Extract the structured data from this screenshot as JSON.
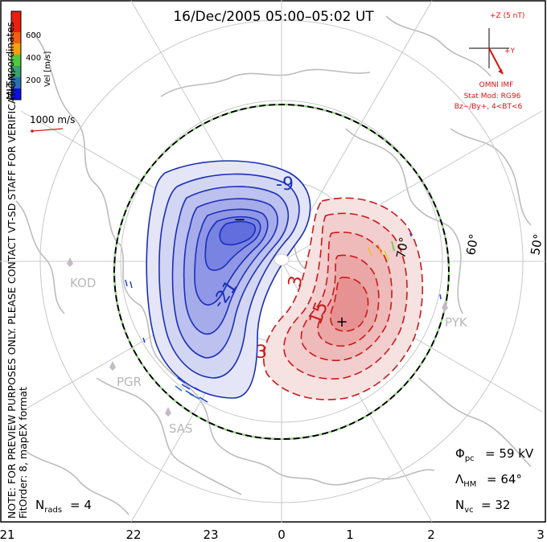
{
  "title": "16/Dec/2005 05:00–05:02 UT",
  "coordinate_system": "MLT coordinates",
  "verification_note": "NOTE: FOR PREVIEW PURPOSES ONLY. PLEASE CONTACT VT-SD STAFF FOR VERIFICATION.",
  "fit_info": "FitOrder: 8, mapEX format",
  "colorbar": {
    "label": "Vel [m/s]",
    "ticks": [
      "600",
      "400",
      "200"
    ],
    "colors": [
      "#1010e0",
      "#2a6fb0",
      "#3aa070",
      "#50c840",
      "#c8d820",
      "#f0a010",
      "#f06010",
      "#e82010"
    ]
  },
  "vector_scale": "1000 m/s",
  "imf": {
    "z_label": "+Z (5 nT)",
    "y_label": "+Y",
    "source": "OMNI IMF",
    "model": "Stat Mod: RG96",
    "condition": "Bz−/By+, 4<BT<6"
  },
  "latitude_labels": [
    "70°",
    "60°",
    "50°"
  ],
  "stations": [
    "KOD",
    "PGR",
    "SAS",
    "PYK"
  ],
  "contours": {
    "negative": [
      "-9",
      "-21"
    ],
    "positive": [
      "3",
      "15",
      "3"
    ]
  },
  "extremes": {
    "min_marker": "−",
    "max_marker": "+"
  },
  "stats": {
    "phi_pc": "= 59 kV",
    "lambda_hm": "= 64°",
    "n_vc": "= 32",
    "n_rads": "= 4"
  },
  "mlt_axis": [
    "21",
    "22",
    "23",
    "0",
    "1",
    "2",
    "3"
  ]
}
